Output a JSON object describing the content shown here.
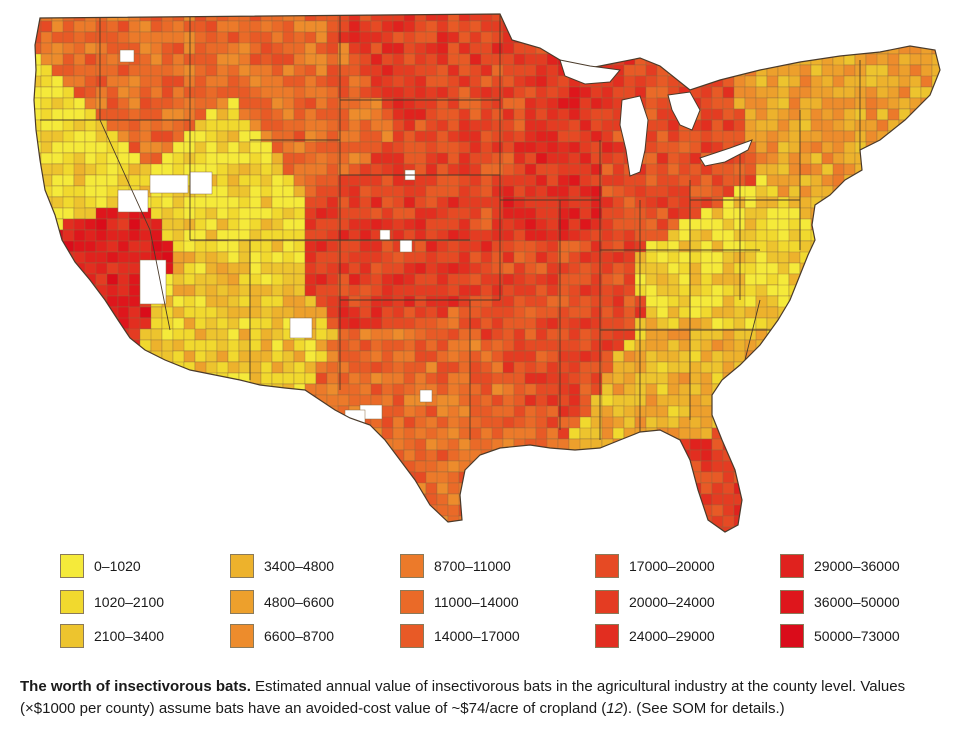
{
  "map": {
    "region": "contiguous-united-states",
    "classification": "choropleth by county",
    "no_data_color": "#ffffff",
    "county_border_color": "#8a6a40",
    "state_border_color": "#4a3a2a",
    "regional_pattern": [
      {
        "area": "northern great plains",
        "class_index": 10
      },
      {
        "area": "upper midwest / corn belt",
        "class_index": 9
      },
      {
        "area": "iowa / illinois",
        "class_index": 11
      },
      {
        "area": "mississippi delta",
        "class_index": 9
      },
      {
        "area": "central valley california",
        "class_index": 12
      },
      {
        "area": "pacific northwest inland",
        "class_index": 7
      },
      {
        "area": "intermountain west",
        "class_index": 1
      },
      {
        "area": "southwest",
        "class_index": 2
      },
      {
        "area": "southeast",
        "class_index": 3
      },
      {
        "area": "appalachia",
        "class_index": 1
      },
      {
        "area": "northeast",
        "class_index": 4
      },
      {
        "area": "texas gulf",
        "class_index": 7
      },
      {
        "area": "south florida",
        "class_index": 10
      }
    ]
  },
  "legend": [
    {
      "label": "0–1020",
      "color": "#f5ea3a"
    },
    {
      "label": "1020–2100",
      "color": "#f1d92e"
    },
    {
      "label": "2100–3400",
      "color": "#edc42e"
    },
    {
      "label": "3400–4800",
      "color": "#edb22c"
    },
    {
      "label": "4800–6600",
      "color": "#eda02c"
    },
    {
      "label": "6600–8700",
      "color": "#ed8c2c"
    },
    {
      "label": "8700–11000",
      "color": "#ec7a2a"
    },
    {
      "label": "11000–14000",
      "color": "#ea6a28"
    },
    {
      "label": "14000–17000",
      "color": "#e85a26"
    },
    {
      "label": "17000–20000",
      "color": "#e64a24"
    },
    {
      "label": "20000–24000",
      "color": "#e43c22"
    },
    {
      "label": "24000–29000",
      "color": "#e22e20"
    },
    {
      "label": "29000–36000",
      "color": "#e0221e"
    },
    {
      "label": "36000–50000",
      "color": "#de161c"
    },
    {
      "label": "50000–73000",
      "color": "#da0c1a"
    }
  ],
  "caption": {
    "title": "The worth of insectivorous bats.",
    "text_1": " Estimated annual value of insectivorous bats in the agricultural industry at the county level. Values (×$1000 per county) assume bats have an avoided-cost value of ~$74/acre of cropland (",
    "ref": "12",
    "text_2": "). (See SOM for details.)"
  }
}
